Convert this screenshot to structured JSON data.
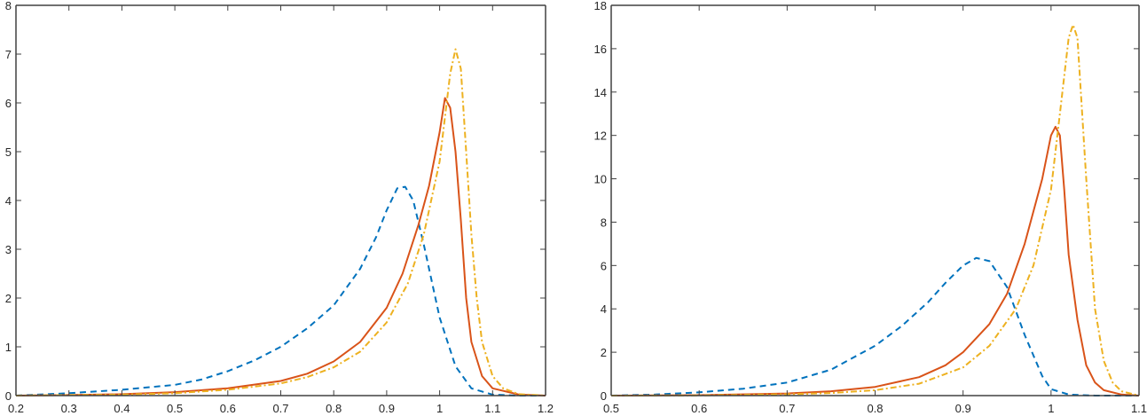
{
  "colors": {
    "series1": "#0072BD",
    "series2": "#D95319",
    "series3": "#EDB120",
    "axis": "#404040"
  },
  "chart_data": [
    {
      "type": "line",
      "title": "",
      "xlabel": "",
      "ylabel": "",
      "xlim": [
        0.2,
        1.2
      ],
      "ylim": [
        0,
        8
      ],
      "grid": false,
      "legend": null,
      "xticks": [
        "0.2",
        "0.3",
        "0.4",
        "0.5",
        "0.6",
        "0.7",
        "0.8",
        "0.9",
        "1",
        "1.1",
        "1.2"
      ],
      "yticks": [
        "0",
        "1",
        "2",
        "3",
        "4",
        "5",
        "6",
        "7",
        "8"
      ],
      "series": [
        {
          "name": "series-1-dashed-blue",
          "style": "dashed",
          "x": [
            0.2,
            0.3,
            0.4,
            0.5,
            0.55,
            0.6,
            0.65,
            0.7,
            0.75,
            0.8,
            0.85,
            0.88,
            0.9,
            0.92,
            0.935,
            0.95,
            0.97,
            1.0,
            1.03,
            1.06,
            1.1,
            1.15,
            1.2
          ],
          "y": [
            0.0,
            0.05,
            0.12,
            0.22,
            0.33,
            0.5,
            0.72,
            1.0,
            1.38,
            1.85,
            2.6,
            3.25,
            3.8,
            4.25,
            4.28,
            4.0,
            3.1,
            1.6,
            0.6,
            0.15,
            0.02,
            0.0,
            0.0
          ]
        },
        {
          "name": "series-2-solid-orange",
          "style": "solid",
          "x": [
            0.2,
            0.3,
            0.4,
            0.5,
            0.6,
            0.7,
            0.75,
            0.8,
            0.85,
            0.9,
            0.93,
            0.96,
            0.98,
            1.0,
            1.01,
            1.02,
            1.03,
            1.04,
            1.05,
            1.06,
            1.08,
            1.1,
            1.15,
            1.2
          ],
          "y": [
            0.0,
            0.01,
            0.03,
            0.07,
            0.15,
            0.3,
            0.45,
            0.7,
            1.1,
            1.8,
            2.5,
            3.5,
            4.3,
            5.4,
            6.1,
            5.9,
            5.0,
            3.6,
            2.0,
            1.1,
            0.4,
            0.15,
            0.02,
            0.0
          ]
        },
        {
          "name": "series-3-dashdot-yellow",
          "style": "dashdot",
          "x": [
            0.2,
            0.3,
            0.4,
            0.5,
            0.6,
            0.7,
            0.75,
            0.8,
            0.85,
            0.9,
            0.94,
            0.97,
            1.0,
            1.02,
            1.03,
            1.04,
            1.05,
            1.06,
            1.07,
            1.08,
            1.1,
            1.12,
            1.15,
            1.2
          ],
          "y": [
            0.0,
            0.01,
            0.02,
            0.05,
            0.12,
            0.25,
            0.38,
            0.58,
            0.9,
            1.5,
            2.3,
            3.3,
            4.8,
            6.6,
            7.1,
            6.7,
            5.0,
            3.3,
            2.0,
            1.1,
            0.4,
            0.15,
            0.03,
            0.0
          ]
        }
      ]
    },
    {
      "type": "line",
      "title": "",
      "xlabel": "",
      "ylabel": "",
      "xlim": [
        0.5,
        1.1
      ],
      "ylim": [
        0,
        18
      ],
      "grid": false,
      "legend": null,
      "xticks": [
        "0.5",
        "0.6",
        "0.7",
        "0.8",
        "0.9",
        "1",
        "1.1"
      ],
      "yticks": [
        "0",
        "2",
        "4",
        "6",
        "8",
        "10",
        "12",
        "14",
        "16",
        "18"
      ],
      "series": [
        {
          "name": "series-1-dashed-blue",
          "style": "dashed",
          "x": [
            0.5,
            0.55,
            0.6,
            0.65,
            0.7,
            0.75,
            0.8,
            0.83,
            0.86,
            0.88,
            0.9,
            0.915,
            0.93,
            0.95,
            0.97,
            0.99,
            1.0,
            1.02,
            1.05,
            1.1
          ],
          "y": [
            0.0,
            0.05,
            0.15,
            0.32,
            0.6,
            1.2,
            2.3,
            3.2,
            4.3,
            5.2,
            6.0,
            6.35,
            6.2,
            5.0,
            2.8,
            0.9,
            0.3,
            0.05,
            0.0,
            0.0
          ]
        },
        {
          "name": "series-2-solid-orange",
          "style": "solid",
          "x": [
            0.5,
            0.6,
            0.7,
            0.75,
            0.8,
            0.85,
            0.88,
            0.9,
            0.93,
            0.95,
            0.97,
            0.99,
            1.0,
            1.005,
            1.01,
            1.015,
            1.02,
            1.03,
            1.04,
            1.05,
            1.06,
            1.08,
            1.1
          ],
          "y": [
            0.0,
            0.02,
            0.1,
            0.2,
            0.4,
            0.85,
            1.4,
            2.0,
            3.3,
            4.7,
            7.0,
            10.0,
            12.0,
            12.4,
            12.0,
            9.5,
            6.5,
            3.5,
            1.4,
            0.6,
            0.25,
            0.05,
            0.0
          ]
        },
        {
          "name": "series-3-dashdot-yellow",
          "style": "dashdot",
          "x": [
            0.5,
            0.6,
            0.7,
            0.75,
            0.8,
            0.85,
            0.9,
            0.93,
            0.96,
            0.98,
            1.0,
            1.01,
            1.02,
            1.025,
            1.03,
            1.04,
            1.05,
            1.06,
            1.07,
            1.08,
            1.1
          ],
          "y": [
            0.0,
            0.01,
            0.06,
            0.12,
            0.25,
            0.55,
            1.3,
            2.3,
            4.0,
            6.0,
            9.5,
            13.0,
            16.5,
            17.1,
            16.5,
            10.0,
            4.0,
            1.6,
            0.6,
            0.2,
            0.0
          ]
        }
      ]
    }
  ]
}
